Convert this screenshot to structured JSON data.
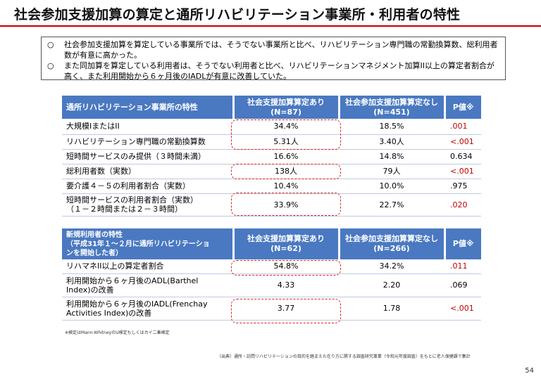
{
  "title": "社会参加支援加算の算定と通所リハビリテーション事業所・利用者の特性",
  "summary": [
    {
      "bullet": "○",
      "text": "社会参加支援加算を算定している事業所では、そうでない事業所と比べ、リハビリテーション専門職の常勤換算数、総利用者数が有意に高かった。"
    },
    {
      "bullet": "○",
      "text": "また同加算を算定している利用者は、そうでない利用者と比べ、リハビリテーションマネジメント加算II以上の算定者割合が高く、また利用開始から６ヶ月後のIADLが有意に改善していた。"
    }
  ],
  "table1": {
    "header": {
      "col0": "通所リハビリテーション事業所の特性",
      "col1_line1": "社会支援加算算定あり",
      "col1_line2": "(N=87)",
      "col2_line1": "社会参加支援加算算定なし",
      "col2_line2": "(N=451)",
      "col3": "P値※"
    },
    "rows": [
      {
        "label": "大規模IまたはII",
        "with": "34.4%",
        "without": "18.5%",
        "p": ".001"
      },
      {
        "label": "リハビリテーション専門職の常勤換算数",
        "with": "5.31人",
        "without": "3.40人",
        "p": "<.001"
      },
      {
        "label": "短時間サービスのみ提供（３時間未満）",
        "with": "16.6%",
        "without": "14.8%",
        "p": "0.634"
      },
      {
        "label": "総利用者数（実数）",
        "with": "138人",
        "without": "79人",
        "p": "<.001"
      },
      {
        "label": "要介護４－５の利用者割合（実数）",
        "with": "10.4%",
        "without": "10.0%",
        "p": ".975"
      },
      {
        "label_line1": "短時間サービスの利用者割合（実数）",
        "label_line2": "（１－２時間または２－３時間）",
        "with": "33.9%",
        "without": "22.7%",
        "p": ".020"
      }
    ]
  },
  "table2": {
    "header": {
      "col0_line1": "新規利用者の特性",
      "col0_line2": "（平成31年１～２月に通所リハビリテーショ",
      "col0_line3": "ンを開始した者）",
      "col1_line1": "社会支援加算算定あり",
      "col1_line2": "(N=62)",
      "col2_line1": "社会参加支援加算算定なし",
      "col2_line2": "(N=266)",
      "col3": "P値※"
    },
    "rows": [
      {
        "label": "リハマネII以上の算定者割合",
        "with": "54.8%",
        "without": "34.2%",
        "p": ".011"
      },
      {
        "label_line1": "利用開始から６ヶ月後のADL(Barthel",
        "label_line2": "Index)の改善",
        "with": "4.33",
        "without": "2.20",
        "p": ".069"
      },
      {
        "label_line1": "利用開始から６ヶ月後のIADL(Frenchay",
        "label_line2": "Activities Index)の改善",
        "with": "3.77",
        "without": "1.78",
        "p": "<.001"
      }
    ]
  },
  "footnote": "※検定はMann-WhitneyのU検定もしくはカイ二乗検定",
  "source": "（出典）通所・訪問リハビリテーションの目的を踏まえた在り方に関する調査研究事業（令和元年度調査）をもとに老人保健課で集計",
  "page_number": "54",
  "colors": {
    "header_bg": "#4a79c1",
    "title_rule": "#c00000",
    "significant": "#c00000",
    "highlight_border": "#e02020"
  }
}
